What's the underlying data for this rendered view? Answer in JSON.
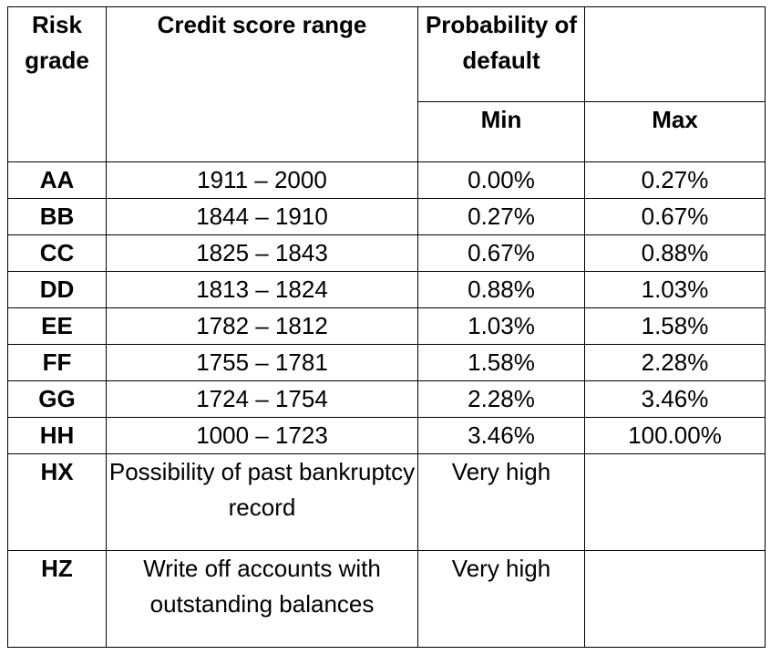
{
  "headers": {
    "risk_grade": "Risk grade",
    "credit_score_range": "Credit score range",
    "probability_of_default": "Probability of default",
    "min": "Min",
    "max": "Max"
  },
  "rows": [
    {
      "grade": "AA",
      "range": "1911 – 2000",
      "min": "0.00%",
      "max": "0.27%"
    },
    {
      "grade": "BB",
      "range": "1844 – 1910",
      "min": "0.27%",
      "max": "0.67%"
    },
    {
      "grade": "CC",
      "range": "1825 – 1843",
      "min": "0.67%",
      "max": "0.88%"
    },
    {
      "grade": "DD",
      "range": "1813 – 1824",
      "min": "0.88%",
      "max": "1.03%"
    },
    {
      "grade": "EE",
      "range": "1782 – 1812",
      "min": "1.03%",
      "max": "1.58%"
    },
    {
      "grade": "FF",
      "range": "1755 – 1781",
      "min": "1.58%",
      "max": "2.28%"
    },
    {
      "grade": "GG",
      "range": "1724 – 1754",
      "min": "2.28%",
      "max": "3.46%"
    },
    {
      "grade": "HH",
      "range": "1000 – 1723",
      "min": "3.46%",
      "max": "100.00%"
    }
  ],
  "special_rows": [
    {
      "grade": "HX",
      "description": "Possibility of past bankruptcy record",
      "probability": "Very high"
    },
    {
      "grade": "HZ",
      "description": "Write off accounts with outstanding balances",
      "probability": "Very high"
    }
  ]
}
